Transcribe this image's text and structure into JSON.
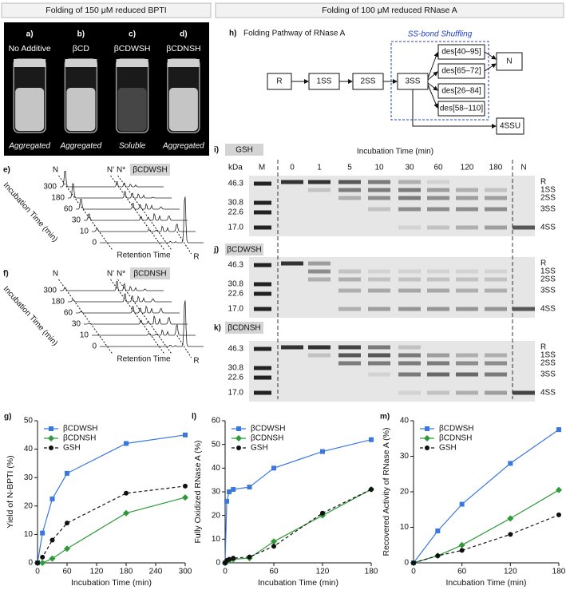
{
  "headers": {
    "left": "Folding of 150 μM reduced BPTI",
    "right": "Folding of 100 μM reduced RNase A"
  },
  "vials": [
    {
      "label": "a)",
      "name": "No Additive",
      "result": "Aggregated"
    },
    {
      "label": "b)",
      "name": "βCD",
      "result": "Aggregated"
    },
    {
      "label": "c)",
      "name": "βCDWSH",
      "result": "Soluble"
    },
    {
      "label": "d)",
      "name": "βCDNSH",
      "result": "Aggregated"
    }
  ],
  "hplc": [
    {
      "label": "e)",
      "additive": "βCDWSH",
      "peaks": [
        "N",
        "N'",
        "N*"
      ],
      "times": [
        300,
        180,
        60,
        30,
        10,
        0
      ],
      "y_title": "Incubation Time (min)",
      "x_title": "Retention Time",
      "end_peak": "R"
    },
    {
      "label": "f)",
      "additive": "βCDNSH",
      "peaks": [
        "N",
        "N'",
        "N*"
      ],
      "times": [
        300,
        180,
        60,
        30,
        10,
        0
      ],
      "y_title": "Incubation Time (min)",
      "x_title": "Retention Time",
      "end_peak": "R"
    }
  ],
  "pathway": {
    "label": "h)",
    "title": "Folding Pathway of RNase A",
    "shuffling": "SS-bond Shuffling",
    "nodes": [
      "R",
      "1SS",
      "2SS",
      "3SS"
    ],
    "des": [
      "des[40–95]",
      "des[65–72]",
      "des[26–84]",
      "des[58–110]"
    ],
    "native": "N",
    "end": "4SSU"
  },
  "gels": {
    "unit": "kDa",
    "marker_lane": "M",
    "lane_title": "Incubation Time (min)",
    "lanes": [
      "0",
      "1",
      "5",
      "10",
      "30",
      "60",
      "120",
      "180",
      "N"
    ],
    "markers": [
      "46.3",
      "30.8",
      "22.6",
      "17.0"
    ],
    "species": [
      "R",
      "1SS",
      "2SS",
      "3SS",
      "4SS"
    ],
    "panels": [
      {
        "label": "i)",
        "additive": "GSH"
      },
      {
        "label": "j)",
        "additive": "βCDWSH"
      },
      {
        "label": "k)",
        "additive": "βCDNSH"
      }
    ]
  },
  "chart_data": [
    {
      "type": "line",
      "label": "g)",
      "x_label": "Incubation Time (min)",
      "y_label": "Yield of N-BPTI (%)",
      "x": [
        0,
        10,
        30,
        60,
        180,
        300
      ],
      "xlim": [
        0,
        300
      ],
      "xticks": [
        0,
        60,
        120,
        180,
        240,
        300
      ],
      "ylim": [
        0,
        50
      ],
      "yticks": [
        0,
        10,
        20,
        30,
        40,
        50
      ],
      "legend": "upper left",
      "series": [
        {
          "name": "βCDWSH",
          "color": "#3a78e0",
          "marker": "square",
          "line_style": "solid",
          "values": [
            0,
            10.5,
            22.5,
            31.5,
            42,
            45
          ]
        },
        {
          "name": "βCDNSH",
          "color": "#2e9a3a",
          "marker": "diamond",
          "line_style": "solid",
          "values": [
            0,
            0,
            1.5,
            5,
            17.5,
            23
          ]
        },
        {
          "name": "GSH",
          "color": "#111111",
          "marker": "circle",
          "line_style": "dashed",
          "values": [
            0,
            2,
            8,
            14,
            24.5,
            27
          ]
        }
      ]
    },
    {
      "type": "line",
      "label": "l)",
      "x_label": "Incubation Time (min)",
      "y_label": "Fully Oxidized RNase A (%)",
      "x": [
        0,
        2,
        5,
        10,
        30,
        60,
        120,
        180
      ],
      "xlim": [
        0,
        180
      ],
      "xticks": [
        0,
        60,
        120,
        180
      ],
      "ylim": [
        0,
        60
      ],
      "yticks": [
        0,
        10,
        20,
        30,
        40,
        50,
        60
      ],
      "legend": "upper left",
      "series": [
        {
          "name": "βCDWSH",
          "color": "#3a78e0",
          "marker": "square",
          "line_style": "solid",
          "values": [
            0,
            26,
            30,
            31,
            32,
            40,
            47,
            52
          ]
        },
        {
          "name": "βCDNSH",
          "color": "#2e9a3a",
          "marker": "diamond",
          "line_style": "solid",
          "values": [
            0,
            0.5,
            1,
            1.5,
            2,
            9,
            20,
            31
          ]
        },
        {
          "name": "GSH",
          "color": "#111111",
          "marker": "circle",
          "line_style": "dashed",
          "values": [
            0,
            1,
            1.5,
            2,
            2.5,
            7,
            21,
            31
          ]
        }
      ]
    },
    {
      "type": "line",
      "label": "m)",
      "x_label": "Incubation Time (min)",
      "y_label": "Recovered Activity of RNase A (%)",
      "x": [
        0,
        30,
        60,
        120,
        180
      ],
      "xlim": [
        0,
        180
      ],
      "xticks": [
        0,
        60,
        120,
        180
      ],
      "ylim": [
        0,
        40
      ],
      "yticks": [
        0,
        10,
        20,
        30,
        40
      ],
      "legend": "upper left",
      "series": [
        {
          "name": "βCDWSH",
          "color": "#3a78e0",
          "marker": "square",
          "line_style": "solid",
          "values": [
            0,
            9,
            16.5,
            28,
            37.5
          ]
        },
        {
          "name": "βCDNSH",
          "color": "#2e9a3a",
          "marker": "diamond",
          "line_style": "solid",
          "values": [
            0,
            2,
            5,
            12.5,
            20.5
          ]
        },
        {
          "name": "GSH",
          "color": "#111111",
          "marker": "circle",
          "line_style": "dashed",
          "values": [
            0,
            2,
            3.5,
            8,
            13.5
          ]
        }
      ]
    }
  ]
}
